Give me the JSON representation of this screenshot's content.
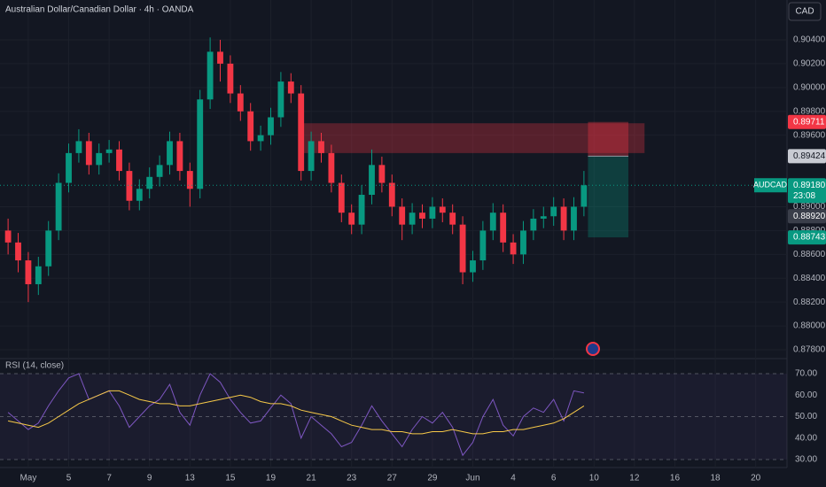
{
  "chart_data": [
    {
      "type": "candlestick",
      "title": "Australian Dollar/Canadian Dollar · 4h · OANDA",
      "currency": "CAD",
      "x": [
        -1,
        -0.5,
        0,
        0.5,
        1,
        1.5,
        2,
        2.5,
        3,
        3.5,
        4,
        4.5,
        5,
        5.5,
        6,
        6.5,
        7,
        7.5,
        8,
        8.5,
        9,
        9.5,
        10,
        10.5,
        11,
        11.5,
        12,
        12.5,
        13,
        13.5,
        14,
        14.5,
        15,
        15.5,
        16,
        16.5,
        17,
        17.5,
        18,
        18.5,
        19,
        19.5,
        20,
        20.5,
        21,
        21.5,
        22,
        22.5,
        23,
        23.5,
        24,
        24.5,
        25,
        25.5,
        26,
        26.5,
        27,
        27.5
      ],
      "open": [
        0.888,
        0.887,
        0.8855,
        0.8835,
        0.885,
        0.888,
        0.892,
        0.8945,
        0.8955,
        0.8935,
        0.8945,
        0.8948,
        0.893,
        0.8905,
        0.8915,
        0.8925,
        0.8935,
        0.8955,
        0.893,
        0.8915,
        0.899,
        0.903,
        0.902,
        0.8995,
        0.898,
        0.8955,
        0.896,
        0.8975,
        0.9005,
        0.8995,
        0.893,
        0.8955,
        0.8945,
        0.892,
        0.8895,
        0.8885,
        0.891,
        0.8935,
        0.892,
        0.89,
        0.8885,
        0.8895,
        0.889,
        0.89,
        0.8895,
        0.8885,
        0.8845,
        0.8855,
        0.888,
        0.8895,
        0.887,
        0.886,
        0.888,
        0.889,
        0.8892,
        0.89,
        0.888,
        0.89
      ],
      "high": [
        0.889,
        0.8878,
        0.8862,
        0.8858,
        0.8888,
        0.8928,
        0.8953,
        0.8965,
        0.8962,
        0.8953,
        0.8956,
        0.8955,
        0.8937,
        0.8923,
        0.8933,
        0.8943,
        0.8963,
        0.8962,
        0.8937,
        0.8998,
        0.9042,
        0.904,
        0.9027,
        0.9002,
        0.8987,
        0.8968,
        0.8983,
        0.9013,
        0.9012,
        0.9002,
        0.8963,
        0.8962,
        0.8952,
        0.8927,
        0.8902,
        0.8918,
        0.8948,
        0.8942,
        0.8927,
        0.8907,
        0.8903,
        0.8902,
        0.8908,
        0.8907,
        0.8902,
        0.8892,
        0.8863,
        0.8888,
        0.8903,
        0.8902,
        0.8877,
        0.8888,
        0.8898,
        0.89,
        0.8908,
        0.8907,
        0.8908,
        0.893
      ],
      "low": [
        0.886,
        0.8845,
        0.882,
        0.8826,
        0.8842,
        0.8872,
        0.8912,
        0.8937,
        0.8927,
        0.8927,
        0.8937,
        0.8922,
        0.8897,
        0.8897,
        0.8907,
        0.8917,
        0.8927,
        0.8922,
        0.89,
        0.8907,
        0.8982,
        0.9005,
        0.8987,
        0.8972,
        0.8947,
        0.8947,
        0.8952,
        0.8967,
        0.8987,
        0.8922,
        0.8922,
        0.8937,
        0.8912,
        0.8887,
        0.8877,
        0.8877,
        0.8902,
        0.8912,
        0.8892,
        0.8872,
        0.8877,
        0.8882,
        0.8882,
        0.8887,
        0.8877,
        0.8835,
        0.8837,
        0.8847,
        0.8872,
        0.8862,
        0.8852,
        0.8852,
        0.8872,
        0.8882,
        0.8884,
        0.8872,
        0.8872,
        0.8892
      ],
      "close": [
        0.887,
        0.8855,
        0.8835,
        0.885,
        0.888,
        0.892,
        0.8945,
        0.8955,
        0.8935,
        0.8945,
        0.8948,
        0.893,
        0.8905,
        0.8915,
        0.8925,
        0.8935,
        0.8955,
        0.893,
        0.8915,
        0.899,
        0.903,
        0.902,
        0.8995,
        0.898,
        0.8955,
        0.896,
        0.8975,
        0.9005,
        0.8995,
        0.893,
        0.8955,
        0.8945,
        0.892,
        0.8895,
        0.8885,
        0.891,
        0.8935,
        0.892,
        0.89,
        0.8885,
        0.8895,
        0.889,
        0.89,
        0.8895,
        0.8885,
        0.8845,
        0.8855,
        0.888,
        0.8895,
        0.887,
        0.886,
        0.888,
        0.889,
        0.8892,
        0.89,
        0.888,
        0.89,
        0.8918
      ],
      "up_color": "#089981",
      "down_color": "#f23645",
      "xlim": [
        -1.4,
        37.55
      ],
      "xticks": [
        {
          "value": 0,
          "label": "May"
        },
        {
          "value": 2,
          "label": "5"
        },
        {
          "value": 4,
          "label": "7"
        },
        {
          "value": 6,
          "label": "9"
        },
        {
          "value": 8,
          "label": "13"
        },
        {
          "value": 10,
          "label": "15"
        },
        {
          "value": 12,
          "label": "19"
        },
        {
          "value": 14,
          "label": "21"
        },
        {
          "value": 16,
          "label": "23"
        },
        {
          "value": 18,
          "label": "27"
        },
        {
          "value": 20,
          "label": "29"
        },
        {
          "value": 22,
          "label": "Jun"
        },
        {
          "value": 24,
          "label": "4"
        },
        {
          "value": 26,
          "label": "6"
        },
        {
          "value": 28,
          "label": "10"
        },
        {
          "value": 30,
          "label": "12"
        },
        {
          "value": 32,
          "label": "16"
        },
        {
          "value": 34,
          "label": "18"
        },
        {
          "value": 36,
          "label": "20"
        }
      ],
      "ylim": [
        0.87726,
        0.90734
      ],
      "yticks": [
        {
          "value": 0.904,
          "label": "0.90400"
        },
        {
          "value": 0.902,
          "label": "0.90200"
        },
        {
          "value": 0.9,
          "label": "0.90000"
        },
        {
          "value": 0.898,
          "label": "0.89800"
        },
        {
          "value": 0.896,
          "label": "0.89600"
        },
        {
          "value": 0.89,
          "label": "0.89000"
        },
        {
          "value": 0.888,
          "label": "0.88800"
        },
        {
          "value": 0.886,
          "label": "0.88600"
        },
        {
          "value": 0.884,
          "label": "0.88400"
        },
        {
          "value": 0.882,
          "label": "0.88200"
        },
        {
          "value": 0.88,
          "label": "0.88000"
        },
        {
          "value": 0.878,
          "label": "0.87800"
        }
      ],
      "grid": true,
      "zones": [
        {
          "from": 13.6,
          "to": 30.5,
          "top": 0.897,
          "bottom": 0.8945,
          "color": "#f23645"
        }
      ],
      "position": {
        "from": 27.7,
        "to": 29.7,
        "stop": 0.89711,
        "entry": 0.89424,
        "target": 0.88743
      },
      "price_labels": [
        {
          "value": 0.89711,
          "color": "#f23645"
        },
        {
          "value": 0.89424,
          "color": "#c8cbd3"
        },
        {
          "value": 0.8918,
          "label": "0.89180",
          "symbol": "AUDCAD",
          "countdown": "23:08",
          "color": "#089981"
        },
        {
          "value": 0.8892,
          "label": "0.88920",
          "color": "#3a3e4a"
        },
        {
          "value": 0.88743,
          "color": "#089981"
        }
      ]
    },
    {
      "type": "line",
      "title": "RSI (14, close)",
      "series": [
        {
          "color": "#7e57c2",
          "values": [
            52,
            48,
            44,
            47,
            55,
            62,
            68,
            70,
            58,
            60,
            62,
            55,
            45,
            50,
            55,
            58,
            65,
            52,
            46,
            60,
            70,
            66,
            58,
            52,
            47,
            48,
            54,
            60,
            56,
            40,
            50,
            46,
            42,
            36,
            38,
            46,
            55,
            48,
            42,
            36,
            44,
            50,
            47,
            52,
            45,
            32,
            38,
            50,
            58,
            46,
            41,
            50,
            54,
            52,
            58,
            48,
            62,
            61
          ]
        },
        {
          "color": "#f7c948",
          "values": [
            48,
            47,
            46,
            45,
            47,
            50,
            53,
            56,
            58,
            60,
            62,
            62,
            60,
            58,
            57,
            56,
            56,
            55,
            55,
            56,
            57,
            58,
            59,
            60,
            59,
            57,
            56,
            56,
            55,
            53,
            52,
            51,
            50,
            48,
            46,
            45,
            44,
            44,
            43,
            43,
            42,
            42,
            43,
            43,
            44,
            43,
            42,
            42,
            43,
            43,
            44,
            44,
            45,
            46,
            47,
            49,
            52,
            55
          ]
        }
      ],
      "ylim": [
        26.3,
        77
      ],
      "yticks": [
        {
          "value": 70,
          "label": "70.00"
        },
        {
          "value": 60,
          "label": "60.00"
        },
        {
          "value": 50,
          "label": "50.00"
        },
        {
          "value": 40,
          "label": "40.00"
        },
        {
          "value": 30,
          "label": "30.00"
        }
      ]
    }
  ]
}
